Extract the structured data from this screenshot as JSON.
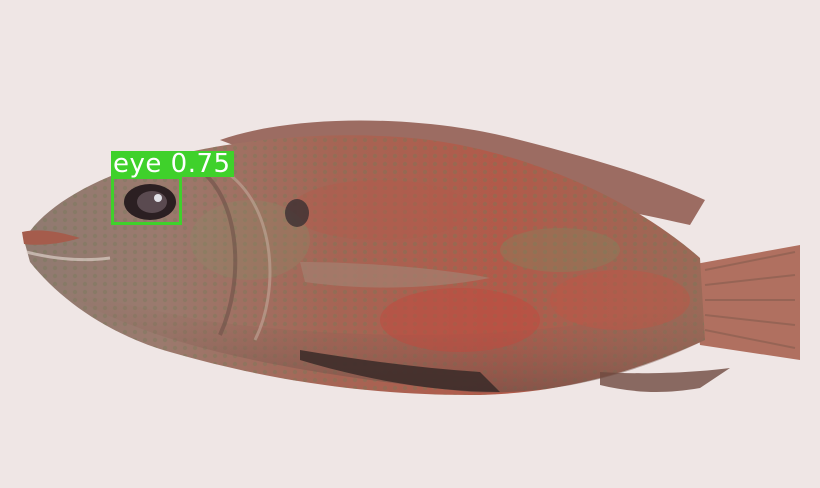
{
  "image": {
    "background_color": "#efe6e5",
    "subject": "fish"
  },
  "detection": {
    "class_label": "eye",
    "confidence": "0.75",
    "color": "#3fd12b"
  }
}
